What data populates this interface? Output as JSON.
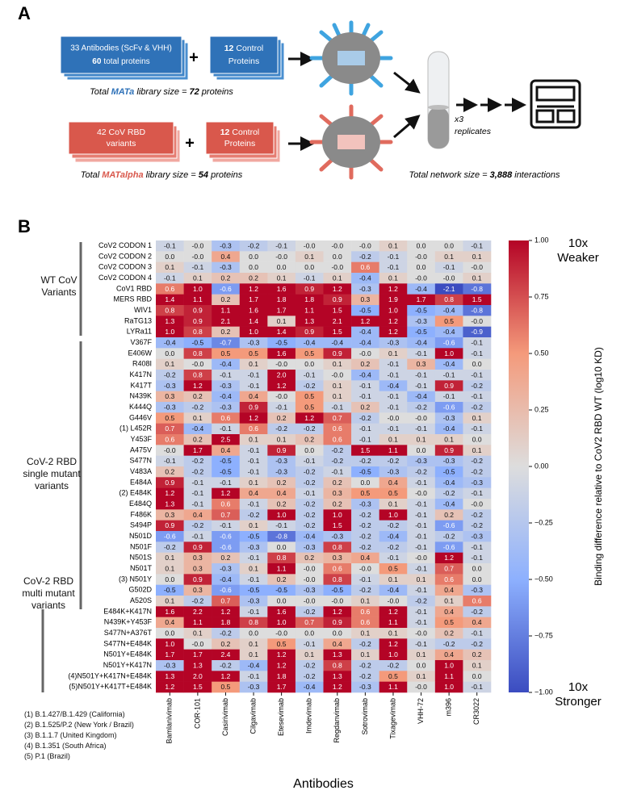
{
  "panel_a": {
    "label": "A",
    "mata_box": [
      "33 Antibodies (ScFv & VHH)",
      "60",
      "total proteins"
    ],
    "control_box": [
      "12",
      "Control",
      "Proteins"
    ],
    "mata_caption": [
      "Total ",
      "MATa",
      " library size = ",
      "72",
      " proteins"
    ],
    "matalpha_box": [
      "42 CoV RBD",
      "variants"
    ],
    "matalpha_caption": [
      "Total ",
      "MATalpha",
      " library size = ",
      "54",
      " proteins"
    ],
    "replicates": [
      "x3",
      "replicates"
    ],
    "network_caption": [
      "Total network size = ",
      "3,888",
      " interactions"
    ]
  },
  "panel_b_label": "B",
  "groups": [
    "WT CoV Variants",
    "CoV-2 RBD single mutant variants",
    "CoV-2 RBD multi mutant variants"
  ],
  "footnotes": [
    "(1) B.1.427/B.1.429 (California)",
    "(2) B.1.525/P.2 (New York / Brazil)",
    "(3) B.1.1.7 (United Kingdom)",
    "(4) B.1.351 (South Africa)",
    "(5) P.1 (Brazil)"
  ],
  "chart_data": {
    "type": "heatmap",
    "x_label": "Antibodies",
    "x_categories": [
      "Bamlanivimab",
      "COR-101",
      "Casirivimab",
      "Cilgavimab",
      "Etesevimab",
      "Imdevimab",
      "Regdanvimab",
      "Sotrovimab",
      "Tixagevimab",
      "VHH-72",
      "m396",
      "CR3022"
    ],
    "y_categories": [
      "CoV2 CODON 1",
      "CoV2 CODON 2",
      "CoV2 CODON 3",
      "CoV2 CODON 4",
      "CoV1 RBD",
      "MERS RBD",
      "WIV1",
      "RaTG13",
      "LYRa11",
      "V367F",
      "E406W",
      "R408I",
      "K417N",
      "K417T",
      "N439K",
      "K444Q",
      "G446V",
      "(1) L452R",
      "Y453F",
      "A475V",
      "S477N",
      "V483A",
      "E484A",
      "(2) E484K",
      "E484Q",
      "F486K",
      "S494P",
      "N501D",
      "N501F",
      "N501S",
      "N501T",
      "(3) N501Y",
      "G502D",
      "A520S",
      "E484K+K417N",
      "N439K+Y453F",
      "S477N+A376T",
      "S477N+E484K",
      "N501Y+E484K",
      "N501Y+K417N",
      "(4)N501Y+K417N+E484K",
      "(5)N501Y+K417T+E484K"
    ],
    "values": [
      [
        -0.1,
        0,
        -0.3,
        -0.2,
        -0.1,
        0,
        0,
        0,
        0.1,
        0,
        0,
        -0.1
      ],
      [
        0,
        0,
        0.4,
        0,
        0,
        0.1,
        0,
        -0.2,
        -0.1,
        0,
        0.1,
        0.1
      ],
      [
        0.1,
        -0.1,
        -0.3,
        0,
        0,
        0,
        0,
        0.6,
        -0.1,
        0,
        -0.1,
        0
      ],
      [
        -0.1,
        0.1,
        0.2,
        0.2,
        0.1,
        -0.1,
        0.1,
        -0.4,
        0.1,
        0,
        0,
        0.1
      ],
      [
        0.6,
        1.0,
        -0.6,
        1.2,
        1.6,
        0.9,
        1.2,
        -0.3,
        1.2,
        -0.4,
        -2.1,
        -0.8
      ],
      [
        1.4,
        1.1,
        0.2,
        1.7,
        1.8,
        1.8,
        0.9,
        0.3,
        1.9,
        1.7,
        0.8,
        1.5
      ],
      [
        0.8,
        0.9,
        1.1,
        1.6,
        1.7,
        1.1,
        1.5,
        -0.5,
        1.0,
        -0.5,
        -0.4,
        -0.8
      ],
      [
        1.3,
        0.9,
        2.1,
        1.4,
        0.1,
        1.3,
        2.1,
        1.2,
        1.2,
        -0.3,
        0.5,
        0
      ],
      [
        1.0,
        0.8,
        0.2,
        1.0,
        1.4,
        0.9,
        1.5,
        -0.4,
        1.2,
        -0.5,
        -0.4,
        -0.9
      ],
      [
        -0.4,
        -0.5,
        -0.7,
        -0.3,
        -0.5,
        -0.4,
        -0.4,
        -0.4,
        -0.3,
        -0.4,
        -0.6,
        -0.1
      ],
      [
        0,
        0.8,
        0.5,
        0.5,
        1.6,
        0.5,
        0.9,
        0,
        0.1,
        -0.1,
        1.0,
        -0.1
      ],
      [
        0.1,
        0,
        -0.4,
        0.1,
        0,
        0,
        0.1,
        0.2,
        -0.1,
        0.3,
        -0.4,
        0
      ],
      [
        -0.2,
        0.8,
        -0.1,
        -0.1,
        2.0,
        -0.1,
        0,
        -0.4,
        -0.1,
        -0.1,
        -0.1,
        -0.1
      ],
      [
        -0.3,
        1.2,
        -0.3,
        -0.1,
        1.2,
        -0.2,
        0.1,
        -0.1,
        -0.4,
        -0.1,
        0.9,
        -0.2
      ],
      [
        0.3,
        0.2,
        -0.4,
        0.4,
        0,
        0.5,
        0.1,
        -0.1,
        -0.1,
        -0.4,
        -0.1,
        -0.1
      ],
      [
        -0.3,
        -0.2,
        -0.3,
        0.9,
        -0.1,
        0.5,
        -0.1,
        0.2,
        -0.1,
        -0.2,
        -0.6,
        -0.2
      ],
      [
        0.5,
        0.1,
        0.6,
        1.2,
        0.2,
        1.2,
        0.7,
        -0.2,
        0,
        0,
        -0.3,
        0.1
      ],
      [
        0.7,
        -0.4,
        -0.1,
        0.6,
        -0.2,
        -0.2,
        0.6,
        -0.1,
        -0.1,
        -0.1,
        -0.4,
        -0.1
      ],
      [
        0.6,
        0.2,
        2.5,
        0.1,
        0.1,
        0.2,
        0.6,
        -0.1,
        0.1,
        0.1,
        0.1,
        0
      ],
      [
        0,
        1.7,
        0.4,
        -0.1,
        0.9,
        0,
        -0.2,
        1.5,
        1.1,
        0,
        0.9,
        0.1
      ],
      [
        -0.1,
        -0.2,
        -0.5,
        -0.1,
        -0.3,
        -0.1,
        -0.2,
        -0.2,
        -0.2,
        -0.3,
        -0.3,
        -0.2
      ],
      [
        0.2,
        -0.2,
        -0.5,
        -0.1,
        -0.3,
        -0.2,
        -0.1,
        -0.5,
        -0.3,
        -0.2,
        -0.5,
        -0.2
      ],
      [
        0.9,
        -0.1,
        -0.1,
        0.1,
        0.2,
        -0.2,
        0.2,
        0,
        0.4,
        -0.1,
        -0.4,
        -0.3
      ],
      [
        1.2,
        -0.1,
        1.2,
        0.4,
        0.4,
        -0.1,
        0.3,
        0.5,
        0.5,
        0,
        -0.2,
        -0.1
      ],
      [
        1.3,
        -0.1,
        0.6,
        -0.1,
        0.2,
        -0.2,
        0.2,
        -0.3,
        0.1,
        -0.1,
        -0.4,
        0
      ],
      [
        0.3,
        0.4,
        0.7,
        -0.2,
        1.0,
        -0.2,
        1.0,
        -0.2,
        1.0,
        -0.1,
        0.2,
        -0.2
      ],
      [
        0.9,
        -0.2,
        -0.1,
        0.1,
        -0.1,
        -0.2,
        1.5,
        -0.2,
        -0.2,
        -0.1,
        -0.6,
        -0.2
      ],
      [
        -0.6,
        -0.1,
        -0.6,
        -0.5,
        -0.8,
        -0.4,
        -0.3,
        -0.2,
        -0.4,
        -0.1,
        -0.2,
        -0.3
      ],
      [
        -0.2,
        0.9,
        -0.6,
        -0.3,
        0,
        -0.3,
        0.8,
        -0.2,
        -0.2,
        -0.1,
        -0.6,
        -0.1
      ],
      [
        0.1,
        0.3,
        0.2,
        -0.1,
        0.8,
        0.2,
        0.3,
        0.4,
        -0.1,
        0,
        1.2,
        -0.1
      ],
      [
        0.1,
        0.3,
        -0.3,
        0.1,
        1.1,
        0,
        0.6,
        0,
        0.5,
        -0.1,
        0.7,
        0
      ],
      [
        0,
        0.9,
        -0.4,
        -0.1,
        0.2,
        0,
        0.8,
        -0.1,
        0.1,
        0.1,
        0.6,
        0
      ],
      [
        -0.5,
        0.3,
        -0.6,
        -0.5,
        -0.5,
        -0.3,
        -0.5,
        -0.2,
        -0.4,
        -0.1,
        0.4,
        -0.3
      ],
      [
        0.1,
        -0.2,
        0.7,
        -0.3,
        0,
        0,
        0,
        0.1,
        0,
        -0.2,
        0.1,
        0.6
      ],
      [
        1.6,
        2.2,
        1.2,
        -0.1,
        1.6,
        -0.2,
        1.2,
        0.6,
        1.2,
        -0.1,
        0.4,
        -0.2
      ],
      [
        0.4,
        1.1,
        1.8,
        0.8,
        1.0,
        0.7,
        0.9,
        0.6,
        1.1,
        -0.1,
        0.5,
        0.4
      ],
      [
        0,
        0.1,
        -0.2,
        0,
        0,
        0,
        0,
        0.1,
        0.1,
        0,
        0.2,
        -0.1
      ],
      [
        1.0,
        0,
        0.2,
        0.1,
        0.5,
        -0.1,
        0.4,
        -0.2,
        1.2,
        -0.1,
        -0.2,
        -0.2
      ],
      [
        1.7,
        1.7,
        2.4,
        0.1,
        1.2,
        0.1,
        1.3,
        0.1,
        1.0,
        0.1,
        0.4,
        0.2
      ],
      [
        -0.3,
        1.3,
        -0.2,
        -0.4,
        1.2,
        -0.2,
        0.8,
        -0.2,
        -0.2,
        0,
        1.0,
        0.1
      ],
      [
        1.3,
        2.0,
        1.2,
        -0.1,
        1.8,
        -0.2,
        1.3,
        -0.2,
        0.5,
        0.1,
        1.1,
        0
      ],
      [
        1.2,
        1.5,
        0.5,
        -0.3,
        1.7,
        -0.4,
        1.2,
        -0.3,
        1.1,
        0,
        1.0,
        -0.1
      ]
    ],
    "value_labels": [
      [
        "-0.1",
        "-0.0",
        "-0.3",
        "-0.2",
        "-0.1",
        "-0.0",
        "-0.0",
        "-0.0",
        "0.1",
        "0.0",
        "0.0",
        "-0.1"
      ],
      [
        "0.0",
        "-0.0",
        "0.4",
        "0.0",
        "-0.0",
        "0.1",
        "0.0",
        "-0.2",
        "-0.1",
        "-0.0",
        "0.1",
        "0.1"
      ],
      [
        "0.1",
        "-0.1",
        "-0.3",
        "0.0",
        "0.0",
        "0.0",
        "-0.0",
        "0.6",
        "-0.1",
        "0.0",
        "-0.1",
        "-0.0"
      ],
      [
        "-0.1",
        "0.1",
        "0.2",
        "0.2",
        "0.1",
        "-0.1",
        "0.1",
        "-0.4",
        "0.1",
        "-0.0",
        "-0.0",
        "0.1"
      ],
      [
        "0.6",
        "1.0",
        "-0.6",
        "1.2",
        "1.6",
        "0.9",
        "1.2",
        "-0.3",
        "1.2",
        "-0.4",
        "-2.1",
        "-0.8"
      ],
      [
        "1.4",
        "1.1",
        "0.2",
        "1.7",
        "1.8",
        "1.8",
        "0.9",
        "0.3",
        "1.9",
        "1.7",
        "0.8",
        "1.5"
      ],
      [
        "0.8",
        "0.9",
        "1.1",
        "1.6",
        "1.7",
        "1.1",
        "1.5",
        "-0.5",
        "1.0",
        "-0.5",
        "-0.4",
        "-0.8"
      ],
      [
        "1.3",
        "0.9",
        "2.1",
        "1.4",
        "0.1",
        "1.3",
        "2.1",
        "1.2",
        "1.2",
        "-0.3",
        "0.5",
        "-0.0"
      ],
      [
        "1.0",
        "0.8",
        "0.2",
        "1.0",
        "1.4",
        "0.9",
        "1.5",
        "-0.4",
        "1.2",
        "-0.5",
        "-0.4",
        "-0.9"
      ],
      [
        "-0.4",
        "-0.5",
        "-0.7",
        "-0.3",
        "-0.5",
        "-0.4",
        "-0.4",
        "-0.4",
        "-0.3",
        "-0.4",
        "-0.6",
        "-0.1"
      ],
      [
        "0.0",
        "0.8",
        "0.5",
        "0.5",
        "1.6",
        "0.5",
        "0.9",
        "-0.0",
        "0.1",
        "-0.1",
        "1.0",
        "-0.1"
      ],
      [
        "0.1",
        "-0.0",
        "-0.4",
        "0.1",
        "-0.0",
        "0.0",
        "0.1",
        "0.2",
        "-0.1",
        "0.3",
        "-0.4",
        "0.0"
      ],
      [
        "-0.2",
        "0.8",
        "-0.1",
        "-0.1",
        "2.0",
        "-0.1",
        "-0.0",
        "-0.4",
        "-0.1",
        "-0.1",
        "-0.1",
        "-0.1"
      ],
      [
        "-0.3",
        "1.2",
        "-0.3",
        "-0.1",
        "1.2",
        "-0.2",
        "0.1",
        "-0.1",
        "-0.4",
        "-0.1",
        "0.9",
        "-0.2"
      ],
      [
        "0.3",
        "0.2",
        "-0.4",
        "0.4",
        "-0.0",
        "0.5",
        "0.1",
        "-0.1",
        "-0.1",
        "-0.4",
        "-0.1",
        "-0.1"
      ],
      [
        "-0.3",
        "-0.2",
        "-0.3",
        "0.9",
        "-0.1",
        "0.5",
        "-0.1",
        "0.2",
        "-0.1",
        "-0.2",
        "-0.6",
        "-0.2"
      ],
      [
        "0.5",
        "0.1",
        "0.6",
        "1.2",
        "0.2",
        "1.2",
        "0.7",
        "-0.2",
        "-0.0",
        "-0.0",
        "-0.3",
        "0.1"
      ],
      [
        "0.7",
        "-0.4",
        "-0.1",
        "0.6",
        "-0.2",
        "-0.2",
        "0.6",
        "-0.1",
        "-0.1",
        "-0.1",
        "-0.4",
        "-0.1"
      ],
      [
        "0.6",
        "0.2",
        "2.5",
        "0.1",
        "0.1",
        "0.2",
        "0.6",
        "-0.1",
        "0.1",
        "0.1",
        "0.1",
        "0.0"
      ],
      [
        "-0.0",
        "1.7",
        "0.4",
        "-0.1",
        "0.9",
        "0.0",
        "-0.2",
        "1.5",
        "1.1",
        "0.0",
        "0.9",
        "0.1"
      ],
      [
        "-0.1",
        "-0.2",
        "-0.5",
        "-0.1",
        "-0.3",
        "-0.1",
        "-0.2",
        "-0.2",
        "-0.2",
        "-0.3",
        "-0.3",
        "-0.2"
      ],
      [
        "0.2",
        "-0.2",
        "-0.5",
        "-0.1",
        "-0.3",
        "-0.2",
        "-0.1",
        "-0.5",
        "-0.3",
        "-0.2",
        "-0.5",
        "-0.2"
      ],
      [
        "0.9",
        "-0.1",
        "-0.1",
        "0.1",
        "0.2",
        "-0.2",
        "0.2",
        "0.0",
        "0.4",
        "-0.1",
        "-0.4",
        "-0.3"
      ],
      [
        "1.2",
        "-0.1",
        "1.2",
        "0.4",
        "0.4",
        "-0.1",
        "0.3",
        "0.5",
        "0.5",
        "-0.0",
        "-0.2",
        "-0.1"
      ],
      [
        "1.3",
        "-0.1",
        "0.6",
        "-0.1",
        "0.2",
        "-0.2",
        "0.2",
        "-0.3",
        "0.1",
        "-0.1",
        "-0.4",
        "-0.0"
      ],
      [
        "0.3",
        "0.4",
        "0.7",
        "-0.2",
        "1.0",
        "-0.2",
        "1.0",
        "-0.2",
        "1.0",
        "-0.1",
        "0.2",
        "-0.2"
      ],
      [
        "0.9",
        "-0.2",
        "-0.1",
        "0.1",
        "-0.1",
        "-0.2",
        "1.5",
        "-0.2",
        "-0.2",
        "-0.1",
        "-0.6",
        "-0.2"
      ],
      [
        "-0.6",
        "-0.1",
        "-0.6",
        "-0.5",
        "-0.8",
        "-0.4",
        "-0.3",
        "-0.2",
        "-0.4",
        "-0.1",
        "-0.2",
        "-0.3"
      ],
      [
        "-0.2",
        "0.9",
        "-0.6",
        "-0.3",
        "0.0",
        "-0.3",
        "0.8",
        "-0.2",
        "-0.2",
        "-0.1",
        "-0.6",
        "-0.1"
      ],
      [
        "0.1",
        "0.3",
        "0.2",
        "-0.1",
        "0.8",
        "0.2",
        "0.3",
        "0.4",
        "-0.1",
        "-0.0",
        "1.2",
        "-0.1"
      ],
      [
        "0.1",
        "0.3",
        "-0.3",
        "0.1",
        "1.1",
        "-0.0",
        "0.6",
        "-0.0",
        "0.5",
        "-0.1",
        "0.7",
        "0.0"
      ],
      [
        "0.0",
        "0.9",
        "-0.4",
        "-0.1",
        "0.2",
        "-0.0",
        "0.8",
        "-0.1",
        "0.1",
        "0.1",
        "0.6",
        "0.0"
      ],
      [
        "-0.5",
        "0.3",
        "-0.6",
        "-0.5",
        "-0.5",
        "-0.3",
        "-0.5",
        "-0.2",
        "-0.4",
        "-0.1",
        "0.4",
        "-0.3"
      ],
      [
        "0.1",
        "-0.2",
        "0.7",
        "-0.3",
        "0.0",
        "-0.0",
        "-0.0",
        "0.1",
        "-0.0",
        "-0.2",
        "0.1",
        "0.6"
      ],
      [
        "1.6",
        "2.2",
        "1.2",
        "-0.1",
        "1.6",
        "-0.2",
        "1.2",
        "0.6",
        "1.2",
        "-0.1",
        "0.4",
        "-0.2"
      ],
      [
        "0.4",
        "1.1",
        "1.8",
        "0.8",
        "1.0",
        "0.7",
        "0.9",
        "0.6",
        "1.1",
        "-0.1",
        "0.5",
        "0.4"
      ],
      [
        "0.0",
        "0.1",
        "-0.2",
        "0.0",
        "-0.0",
        "0.0",
        "0.0",
        "0.1",
        "0.1",
        "-0.0",
        "0.2",
        "-0.1"
      ],
      [
        "1.0",
        "-0.0",
        "0.2",
        "0.1",
        "0.5",
        "-0.1",
        "0.4",
        "-0.2",
        "1.2",
        "-0.1",
        "-0.2",
        "-0.2"
      ],
      [
        "1.7",
        "1.7",
        "2.4",
        "0.1",
        "1.2",
        "0.1",
        "1.3",
        "0.1",
        "1.0",
        "0.1",
        "0.4",
        "0.2"
      ],
      [
        "-0.3",
        "1.3",
        "-0.2",
        "-0.4",
        "1.2",
        "-0.2",
        "0.8",
        "-0.2",
        "-0.2",
        "0.0",
        "1.0",
        "0.1"
      ],
      [
        "1.3",
        "2.0",
        "1.2",
        "-0.1",
        "1.8",
        "-0.2",
        "1.3",
        "-0.2",
        "0.5",
        "0.1",
        "1.1",
        "0.0"
      ],
      [
        "1.2",
        "1.5",
        "0.5",
        "-0.3",
        "1.7",
        "-0.4",
        "1.2",
        "-0.3",
        "1.1",
        "-0.0",
        "1.0",
        "-0.1"
      ]
    ],
    "colorscale": [
      "#3b4cc0",
      "#8db0fe",
      "#dddddd",
      "#f49a7b",
      "#b40426"
    ],
    "zlim": [
      -1,
      1
    ],
    "zticks": [
      {
        "value": 1,
        "label": "1.00"
      },
      {
        "value": 0.75,
        "label": "0.75"
      },
      {
        "value": 0.5,
        "label": "0.50"
      },
      {
        "value": 0.25,
        "label": "0.25"
      },
      {
        "value": 0,
        "label": "0.00"
      },
      {
        "value": -0.25,
        "label": "−0.25"
      },
      {
        "value": -0.5,
        "label": "−0.50"
      },
      {
        "value": -0.75,
        "label": "−0.75"
      },
      {
        "value": -1,
        "label": "−1.00"
      }
    ],
    "colorbar_label": "Binding difference relative to CoV2 RBD WT (log10 KD)",
    "colorbar_top": [
      "10x",
      "Weaker"
    ],
    "colorbar_bottom": [
      "10x",
      "Stronger"
    ]
  }
}
